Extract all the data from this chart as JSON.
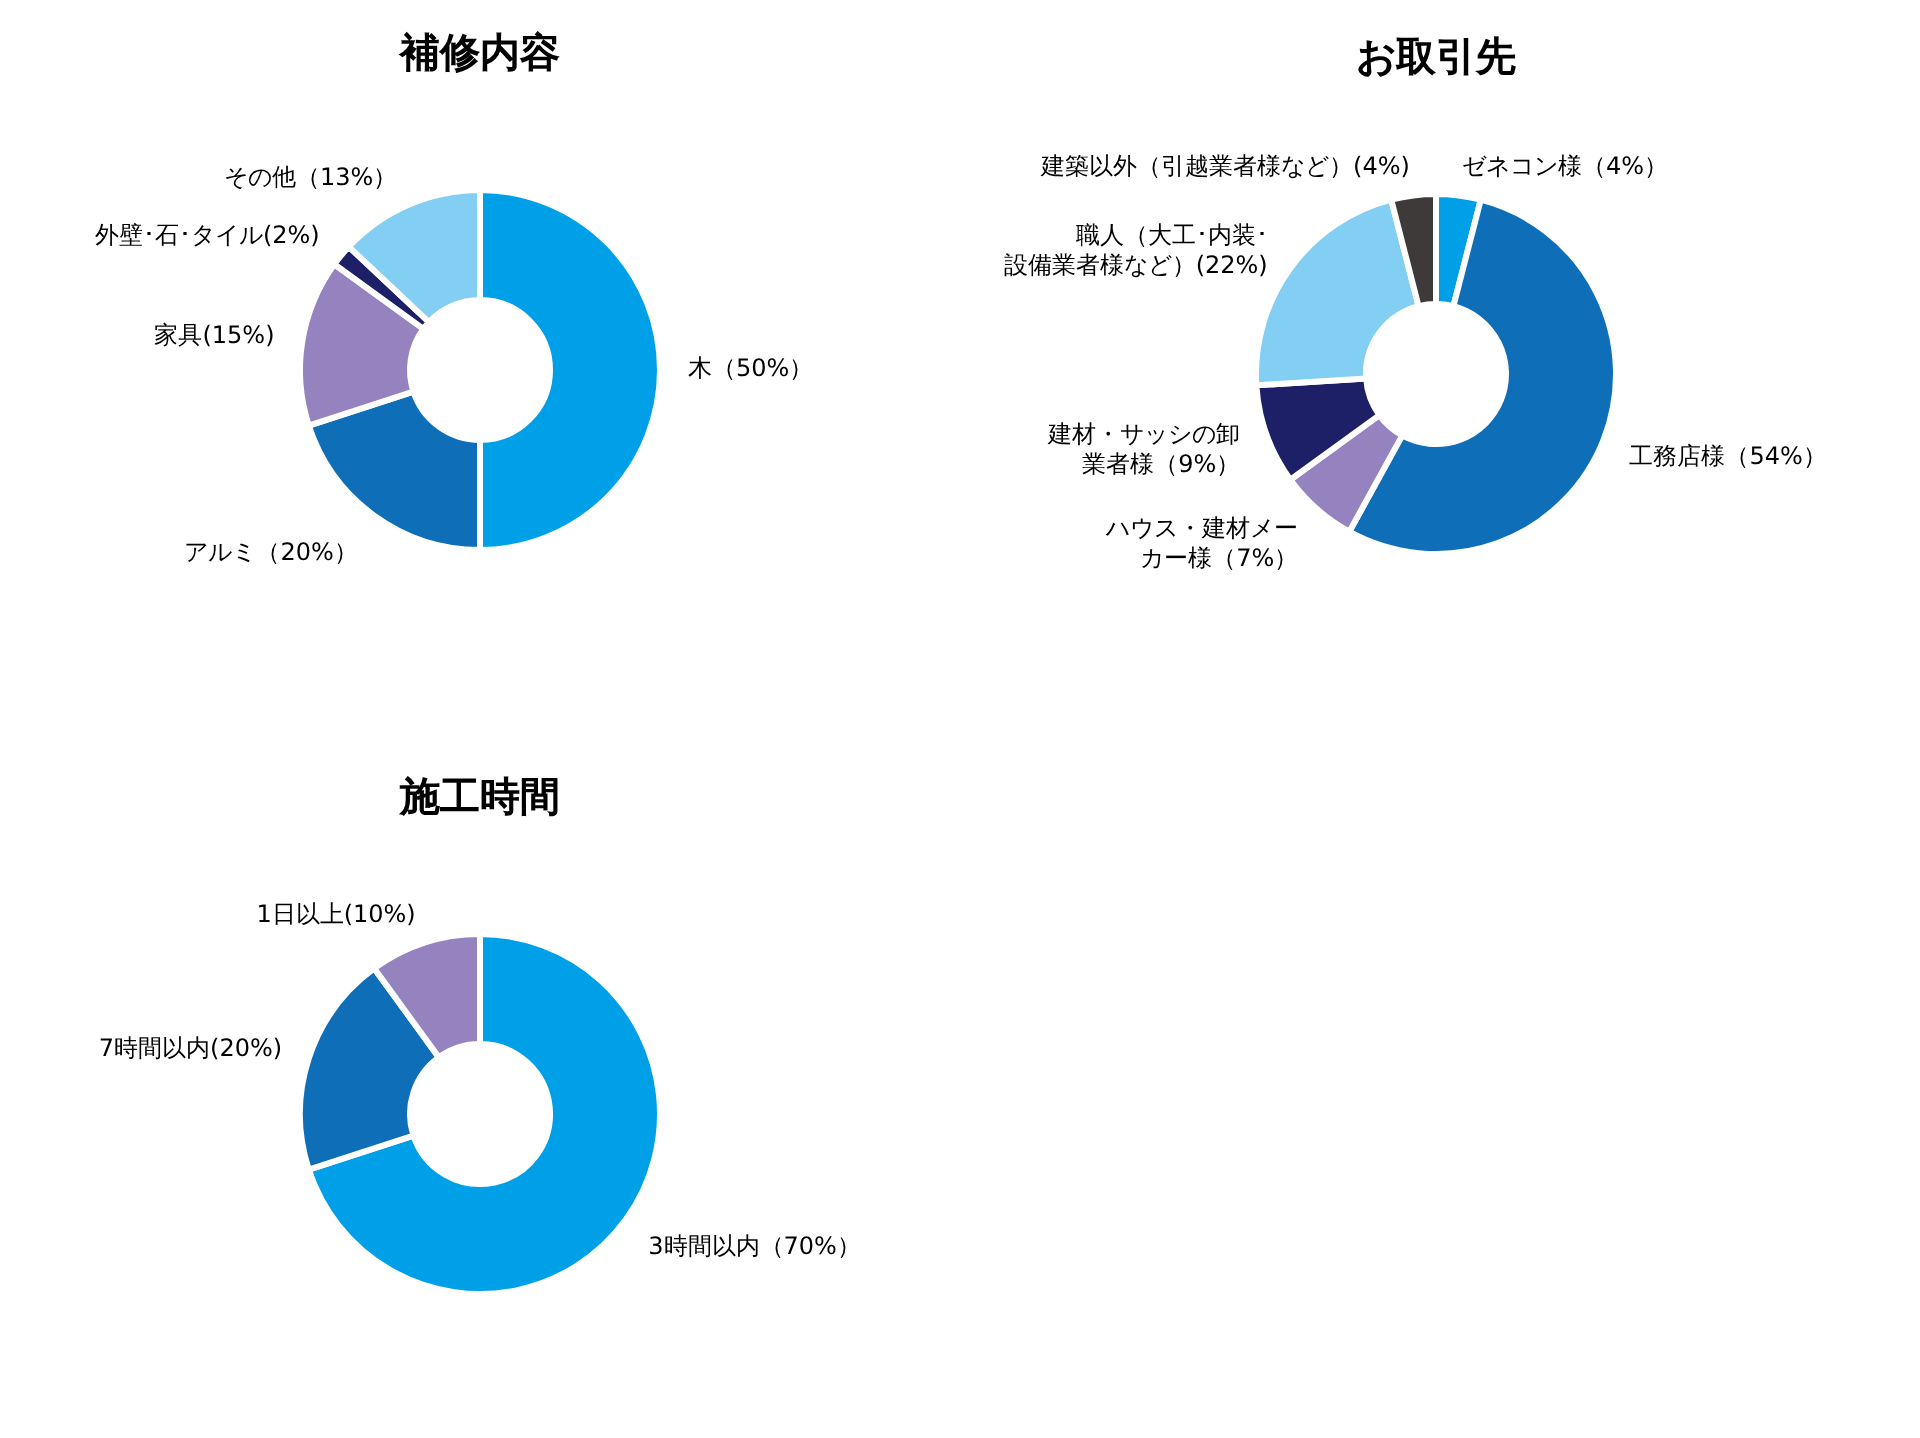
{
  "chart_data": [
    {
      "type": "donut",
      "title": "補修内容",
      "categories": [
        "木（50%）",
        "アルミ（20%）",
        "家具(15%)",
        "外壁･石･タイル(2%)",
        "その他（13%）"
      ],
      "values": [
        50,
        20,
        15,
        2,
        13
      ],
      "colors": [
        "#00a0e9",
        "#0e6eb8",
        "#9483be",
        "#1d2066",
        "#83cff4"
      ]
    },
    {
      "type": "donut",
      "title": "お取引先",
      "categories": [
        "ゼネコン様（4%）",
        "工務店様（54%）",
        "ハウス・建材メーカー様（7%）",
        "建材・サッシの卸業者様（9%）",
        "職人（大工･内装･設備業者様など）(22%)",
        "建築以外（引越業者様など）(4%)"
      ],
      "values": [
        4,
        54,
        7,
        9,
        22,
        4
      ],
      "colors": [
        "#00a0e9",
        "#0e6eb8",
        "#9483be",
        "#1d2066",
        "#83cff4",
        "#3e3a39"
      ]
    },
    {
      "type": "donut",
      "title": "施工時間",
      "categories": [
        "3時間以内（70%）",
        "7時間以内(20%)",
        "1日以上(10%)"
      ],
      "values": [
        70,
        20,
        10
      ],
      "colors": [
        "#00a0e9",
        "#0e6eb8",
        "#9483be"
      ]
    }
  ]
}
